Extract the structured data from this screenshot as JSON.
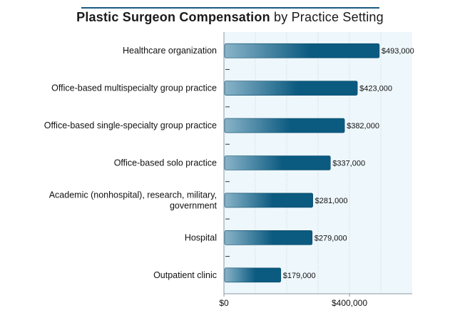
{
  "chart_data": {
    "type": "bar",
    "orientation": "horizontal",
    "title": "Plastic Surgeon Compensation",
    "subtitle": "by Practice Setting",
    "categories": [
      "Healthcare organization",
      "Office-based multispecialty group practice",
      "Office-based single-specialty group practice",
      "Office-based solo practice",
      "Academic (nonhospital), research, military, government",
      "Hospital",
      "Outpatient clinic"
    ],
    "values": [
      493000,
      423000,
      382000,
      337000,
      281000,
      279000,
      179000
    ],
    "value_labels": [
      "$493,000",
      "$423,000",
      "$382,000",
      "$337,000",
      "$281,000",
      "$279,000",
      "$179,000"
    ],
    "xlim": [
      0,
      600000
    ],
    "x_ticks": [
      0,
      400000
    ],
    "x_tick_labels": [
      "$0",
      "$400,000"
    ],
    "xlabel": "",
    "ylabel": "",
    "grid": true,
    "colors": {
      "bar_light": "#8ab4c9",
      "bar_dark": "#0b5a80",
      "plot_bg": "#eef7fb",
      "axis": "#8a9aa3",
      "title_rule": "#1a5a82"
    }
  }
}
